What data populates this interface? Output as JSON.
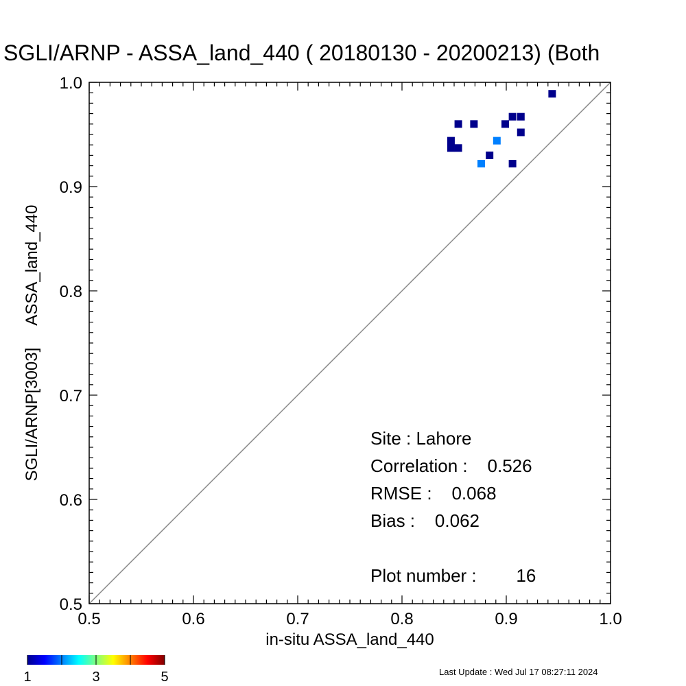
{
  "chart_data": {
    "type": "scatter",
    "title": "SGLI/ARNP - ASSA_land_440 ( 20180130 - 20200213) (Both",
    "xlabel": "in-situ ASSA_land_440",
    "ylabel": "SGLI/ARNP[3003]     ASSA_land_440",
    "xlim": [
      0.5,
      1.0
    ],
    "ylim": [
      0.5,
      1.0
    ],
    "x_ticks": [
      "0.5",
      "0.6",
      "0.7",
      "0.8",
      "0.9",
      "1.0"
    ],
    "y_ticks": [
      "0.5",
      "0.6",
      "0.7",
      "0.8",
      "0.9",
      "1.0"
    ],
    "grid": false,
    "one_to_one_line": true,
    "points": [
      {
        "x": 0.944,
        "y": 0.989,
        "count": 1
      },
      {
        "x": 0.854,
        "y": 0.96,
        "count": 1
      },
      {
        "x": 0.869,
        "y": 0.96,
        "count": 1
      },
      {
        "x": 0.899,
        "y": 0.96,
        "count": 1
      },
      {
        "x": 0.906,
        "y": 0.967,
        "count": 1
      },
      {
        "x": 0.914,
        "y": 0.967,
        "count": 1
      },
      {
        "x": 0.914,
        "y": 0.952,
        "count": 1
      },
      {
        "x": 0.847,
        "y": 0.944,
        "count": 1
      },
      {
        "x": 0.847,
        "y": 0.937,
        "count": 1
      },
      {
        "x": 0.854,
        "y": 0.937,
        "count": 1
      },
      {
        "x": 0.891,
        "y": 0.944,
        "count": 2
      },
      {
        "x": 0.884,
        "y": 0.93,
        "count": 1
      },
      {
        "x": 0.876,
        "y": 0.922,
        "count": 2
      },
      {
        "x": 0.906,
        "y": 0.922,
        "count": 1
      }
    ],
    "stats": {
      "site": "Site : Lahore",
      "correlation": "Correlation :    0.526",
      "rmse": "RMSE :    0.068",
      "bias": "Bias :    0.062",
      "plot_number": "Plot number :        16"
    },
    "colorbar": {
      "min": 1,
      "max": 5,
      "tick_labels": [
        "1",
        "3",
        "5"
      ]
    },
    "last_update": "Last Update : Wed Jul 17 08:27:11 2024",
    "colors": {
      "count_1": "#00008c",
      "count_2": "#0080ff",
      "diagonal": "#888888"
    }
  }
}
